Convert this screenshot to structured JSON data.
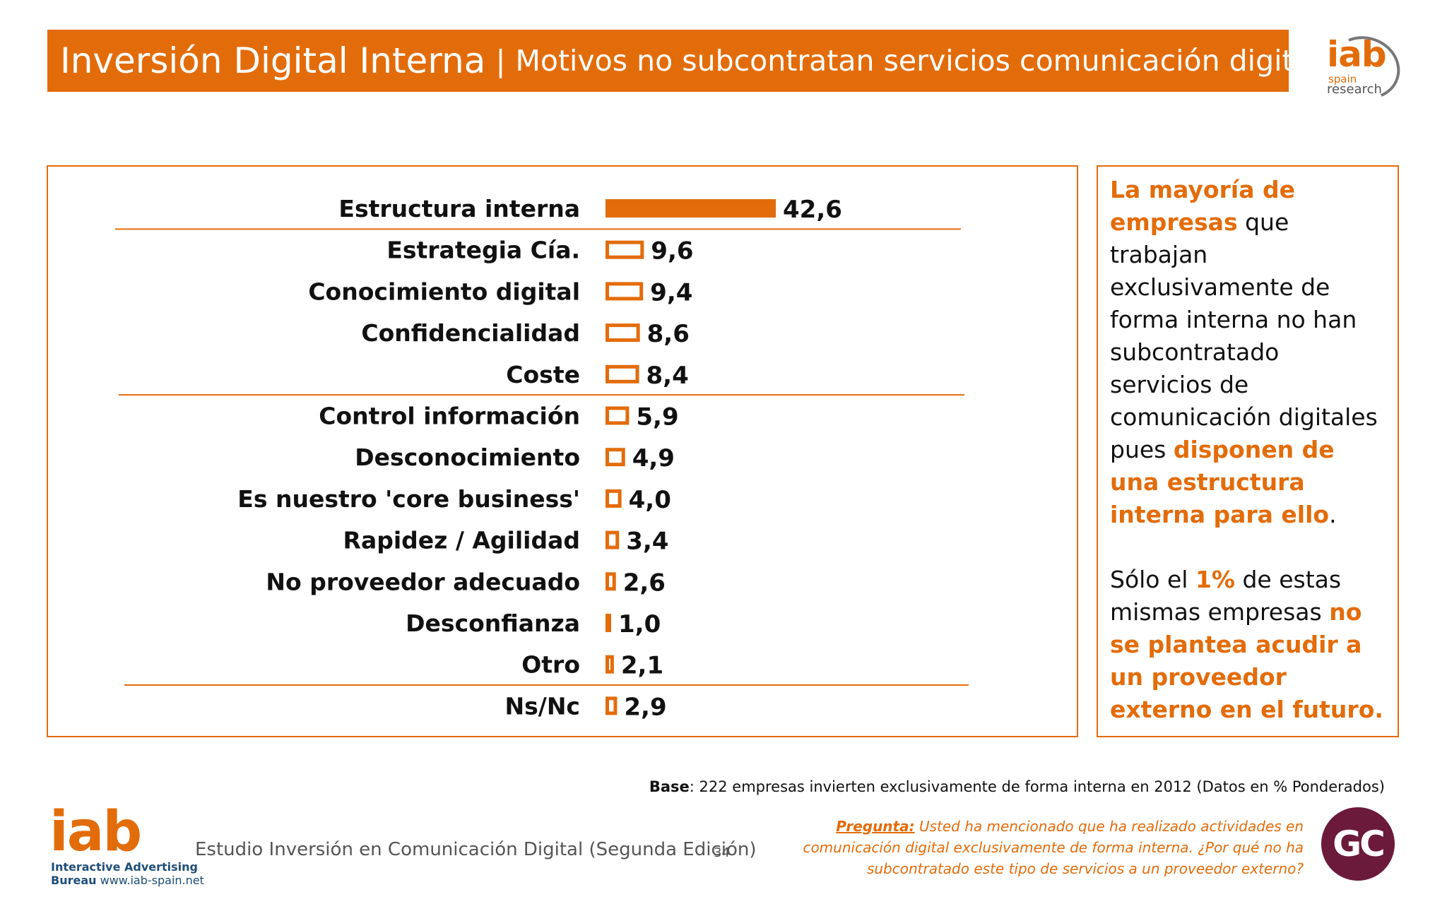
{
  "header": {
    "title_main": "Inversión Digital Interna",
    "title_sep": "|",
    "title_sub": "Motivos no subcontratan servicios comunicación digital"
  },
  "logo_top": {
    "main": "iab",
    "line1": "spain",
    "line2": "research"
  },
  "chart_data": {
    "type": "bar",
    "orientation": "horizontal",
    "categories": [
      "Estructura interna",
      "Estrategia Cía.",
      "Conocimiento digital",
      "Confidencialidad",
      "Coste",
      "Control información",
      "Desconocimiento",
      "Es nuestro 'core business'",
      "Rapidez / Agilidad",
      "No proveedor  adecuado",
      "Desconfianza",
      "Otro",
      "Ns/Nc"
    ],
    "values": [
      42.6,
      9.6,
      9.4,
      8.6,
      8.4,
      5.9,
      4.9,
      4.0,
      3.4,
      2.6,
      1.0,
      2.1,
      2.9
    ],
    "value_labels": [
      "42,6",
      "9,6",
      "9,4",
      "8,6",
      "8,4",
      "5,9",
      "4,9",
      "4,0",
      "3,4",
      "2,6",
      "1,0",
      "2,1",
      "2,9"
    ],
    "highlighted": [
      0
    ],
    "separators_after": [
      0,
      4,
      11
    ],
    "colors": {
      "bar": "#E36C0A",
      "bar_fill_other": "#ffffff",
      "separator": "#E36C0A"
    }
  },
  "side_note": {
    "p1": [
      {
        "text": "La mayoría de empresas",
        "highlight": true
      },
      {
        "text": " que trabajan exclusivamente de forma interna no han subcontratado servicios de comunicación digitales pues ",
        "highlight": false
      },
      {
        "text": "disponen de una estructura interna para ello",
        "highlight": true
      },
      {
        "text": ".",
        "highlight": false
      }
    ],
    "p2": [
      {
        "text": "Sólo el ",
        "highlight": false
      },
      {
        "text": "1%",
        "highlight": true
      },
      {
        "text": " de estas mismas empresas ",
        "highlight": false
      },
      {
        "text": "no se plantea acudir a un proveedor externo en el futuro.",
        "highlight": true
      }
    ]
  },
  "base": {
    "label": "Base",
    "text": ": 222 empresas invierten exclusivamente de forma interna en 2012 (Datos en % Ponderados)"
  },
  "logo_bottom": {
    "main": "iab",
    "line1": "Interactive Advertising",
    "line2_bold": "Bureau",
    "line2_rest": " www.iab-spain.net"
  },
  "footer": {
    "study": "Estudio Inversión en Comunicación Digital (Segunda Edición)",
    "page": "34"
  },
  "pregunta": {
    "label": "Pregunta:",
    "text": " Usted ha mencionado que ha realizado actividades en comunicación digital exclusivamente de forma interna. ¿Por qué no ha subcontratado este tipo de servicios a un proveedor externo?"
  },
  "badge": {
    "text": "GC"
  },
  "colors": {
    "accent": "#E36C0A",
    "badge": "#6B1A3A"
  }
}
